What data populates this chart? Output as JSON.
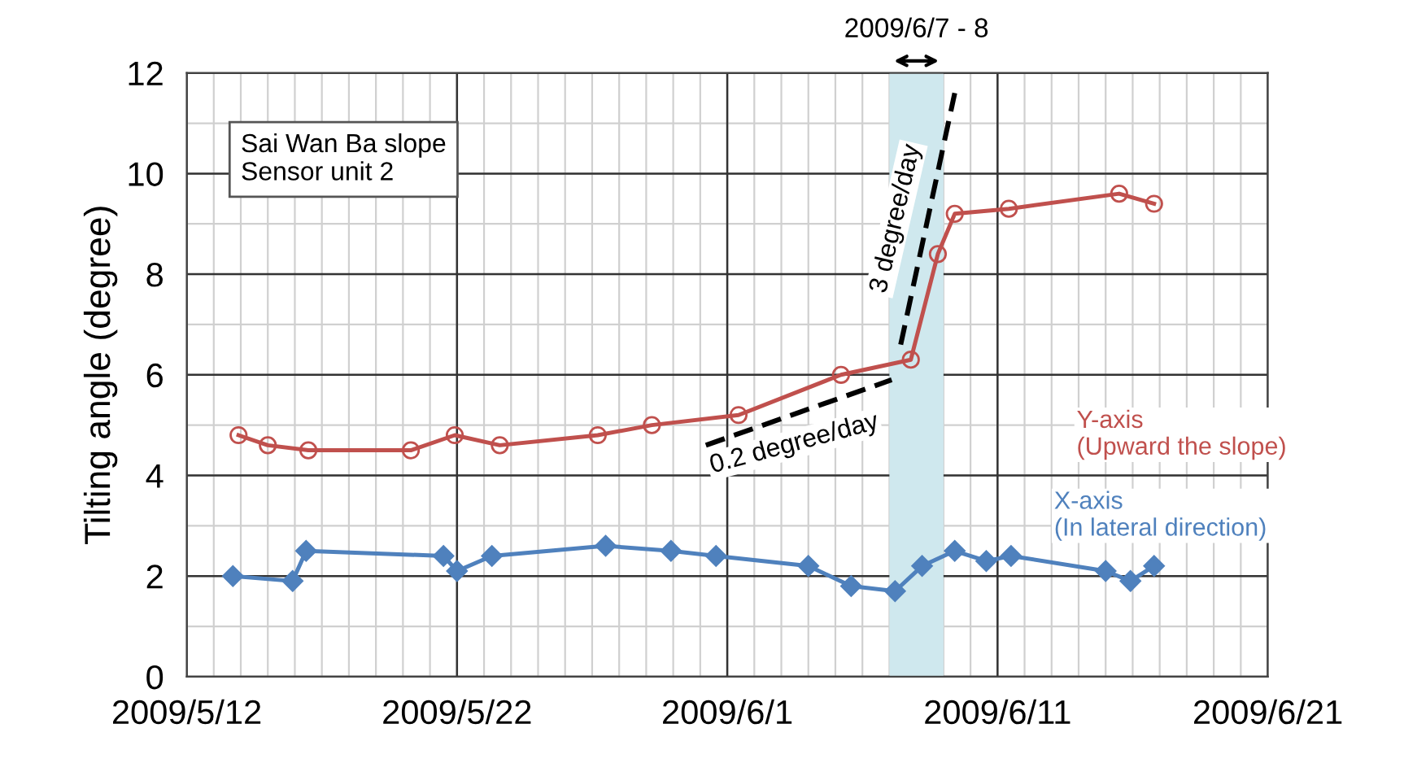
{
  "chart_data": {
    "type": "line",
    "ylabel": "Tilting angle (degree)",
    "xlim": [
      "2009-05-12",
      "2009-06-21"
    ],
    "xticks": [
      {
        "value": "2009-05-12",
        "label": "2009/5/12"
      },
      {
        "value": "2009-05-22",
        "label": "2009/5/22"
      },
      {
        "value": "2009-06-01",
        "label": "2009/6/1"
      },
      {
        "value": "2009-06-11",
        "label": "2009/6/11"
      },
      {
        "value": "2009-06-21",
        "label": "2009/6/21"
      }
    ],
    "ylim": [
      0,
      12
    ],
    "yticks": [
      0,
      2,
      4,
      6,
      8,
      10,
      12
    ],
    "grid": true,
    "series": [
      {
        "name": "Y-axis\n(Upward the slope)",
        "color": "#c0504d",
        "marker": "circle",
        "x": [
          "2009-05-13T22:00",
          "2009-05-15T00:00",
          "2009-05-16T12:00",
          "2009-05-20T07:00",
          "2009-05-21T22:00",
          "2009-05-23T14:00",
          "2009-05-27T05:00",
          "2009-05-29T05:00",
          "2009-06-01T10:00",
          "2009-06-05T05:00",
          "2009-06-07T19:00",
          "2009-06-08T19:00",
          "2009-06-09T10:00",
          "2009-06-11T10:00",
          "2009-06-15T12:00",
          "2009-06-16T19:00"
        ],
        "values": [
          4.8,
          4.6,
          4.5,
          4.5,
          4.8,
          4.6,
          4.8,
          5.0,
          5.2,
          6.0,
          6.3,
          8.4,
          9.2,
          9.3,
          9.6,
          9.4
        ]
      },
      {
        "name": "X-axis\n(In lateral direction)",
        "color": "#4f81bd",
        "marker": "diamond",
        "x": [
          "2009-05-13T17:00",
          "2009-05-15T22:00",
          "2009-05-16T10:00",
          "2009-05-21T12:00",
          "2009-05-22T00:00",
          "2009-05-23T07:00",
          "2009-05-27T12:00",
          "2009-05-29T22:00",
          "2009-05-31T14:00",
          "2009-06-04T00:00",
          "2009-06-05T14:00",
          "2009-06-07T05:00",
          "2009-06-08T05:00",
          "2009-06-09T10:00",
          "2009-06-10T14:00",
          "2009-06-11T12:00",
          "2009-06-15T00:00",
          "2009-06-15T22:00",
          "2009-06-16T19:00"
        ],
        "values": [
          2.0,
          1.9,
          2.5,
          2.4,
          2.1,
          2.4,
          2.6,
          2.5,
          2.4,
          2.2,
          1.8,
          1.7,
          2.2,
          2.5,
          2.3,
          2.4,
          2.1,
          1.9,
          2.2
        ]
      },
      {
        "type": "line",
        "color": "#000000",
        "marker": "none",
        "line_style": "dashed",
        "x": [
          "2009-05-31T05:00",
          "2009-06-07T02:00"
        ],
        "values": [
          4.6,
          5.9
        ]
      },
      {
        "type": "line",
        "color": "#000000",
        "marker": "none",
        "line_style": "dashed",
        "x": [
          "2009-06-07T10:00",
          "2009-06-09T10:00"
        ],
        "values": [
          6.6,
          11.6
        ]
      }
    ],
    "bands": [
      {
        "axis": "x",
        "from": "2009-06-07",
        "to": "2009-06-09",
        "label": "2009/6/7 - 8",
        "color": "#cfe8ee"
      }
    ],
    "annotations": [
      "Sai Wan Ba slope\nSensor unit 2",
      "0.2 degree/day",
      "3 degree/day"
    ]
  }
}
